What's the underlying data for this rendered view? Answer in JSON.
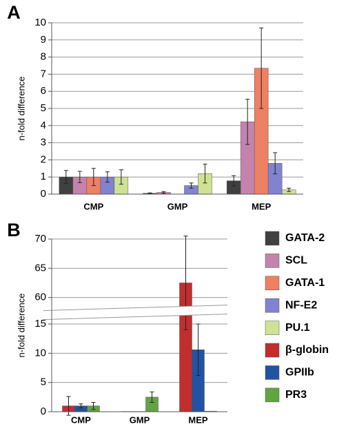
{
  "chart_data": [
    {
      "type": "bar",
      "panel_label": "A",
      "ylabel": "n-fold difference",
      "categories": [
        "CMP",
        "GMP",
        "MEP"
      ],
      "series": [
        {
          "name": "GATA-2",
          "color": "#404040",
          "values": [
            1.0,
            0.05,
            0.78
          ],
          "errors": [
            0.38,
            0.02,
            0.3
          ]
        },
        {
          "name": "SCL",
          "color": "#c483ad",
          "values": [
            1.0,
            0.1,
            4.22
          ],
          "errors": [
            0.33,
            0.05,
            1.32
          ]
        },
        {
          "name": "GATA-1",
          "color": "#ee8063",
          "values": [
            1.0,
            0,
            7.35
          ],
          "errors": [
            0.5,
            0,
            2.35
          ]
        },
        {
          "name": "NF-E2",
          "color": "#8183cf",
          "values": [
            1.0,
            0.5,
            1.8
          ],
          "errors": [
            0.3,
            0.15,
            0.62
          ]
        },
        {
          "name": "PU.1",
          "color": "#cde293",
          "values": [
            1.0,
            1.2,
            0.25
          ],
          "errors": [
            0.42,
            0.55,
            0.1
          ]
        }
      ],
      "ylim": [
        0,
        10
      ],
      "yticks": [
        0,
        1,
        2,
        3,
        4,
        5,
        6,
        7,
        8,
        9,
        10
      ],
      "grid": true
    },
    {
      "type": "bar",
      "panel_label": "B",
      "ylabel": "n-fold difference",
      "categories": [
        "CMP",
        "GMP",
        "MEP"
      ],
      "series": [
        {
          "name": "β-globin",
          "color": "#c22d2d",
          "values": [
            1.0,
            0.05,
            62.5
          ],
          "errors": [
            1.6,
            0,
            8
          ]
        },
        {
          "name": "GPIIb",
          "color": "#2352a2",
          "values": [
            1.0,
            0.05,
            10.6
          ],
          "errors": [
            0.35,
            0,
            4.4
          ]
        },
        {
          "name": "PR3",
          "color": "#62a342",
          "values": [
            1.0,
            2.5,
            0.1
          ],
          "errors": [
            0.6,
            0.9,
            0
          ]
        }
      ],
      "ylim": [
        0,
        70
      ],
      "ybreak": [
        16,
        58
      ],
      "yticks": [
        0,
        5,
        10,
        15,
        60,
        65,
        70
      ],
      "grid": true
    }
  ]
}
